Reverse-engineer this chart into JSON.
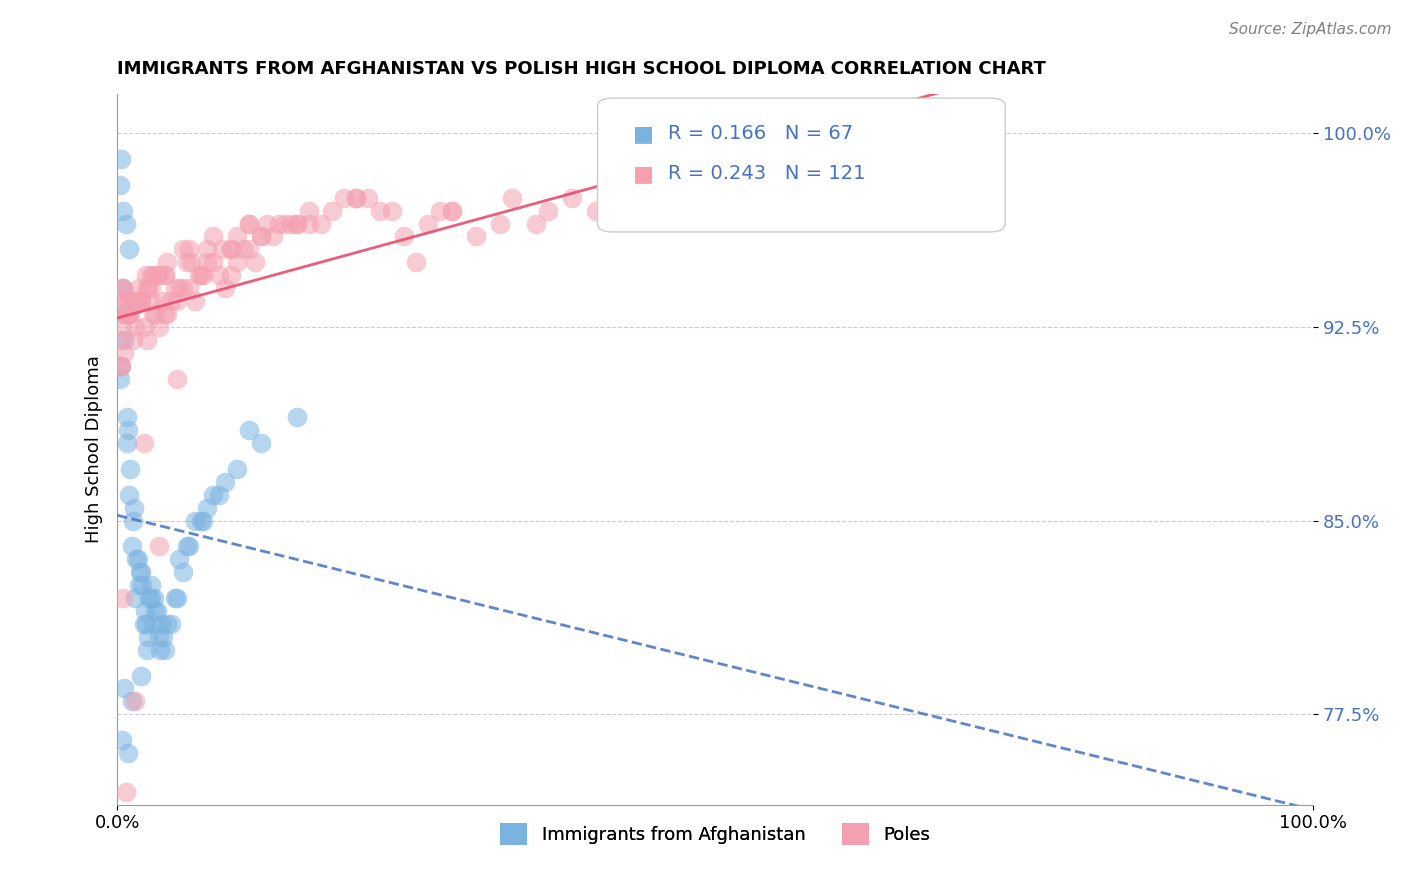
{
  "title": "IMMIGRANTS FROM AFGHANISTAN VS POLISH HIGH SCHOOL DIPLOMA CORRELATION CHART",
  "source": "Source: ZipAtlas.com",
  "xlabel": "",
  "ylabel": "High School Diploma",
  "xlim": [
    0.0,
    100.0
  ],
  "ylim": [
    74.0,
    101.5
  ],
  "yticks": [
    77.5,
    85.0,
    92.5,
    100.0
  ],
  "ytick_labels": [
    "77.5%",
    "85.0%",
    "92.5%",
    "100.0%"
  ],
  "xtick_labels": [
    "0.0%",
    "100.0%"
  ],
  "legend_r1": "R = 0.166",
  "legend_n1": "N = 67",
  "legend_r2": "R = 0.243",
  "legend_n2": "N = 121",
  "color_blue": "#7ab3e0",
  "color_pink": "#f4a0b0",
  "color_blue_line": "#4472c4",
  "color_pink_line": "#e84c6e",
  "color_blue_dashed": "#7ab3e0",
  "blue_dots_x": [
    0.2,
    0.3,
    0.5,
    0.8,
    1.0,
    1.2,
    1.5,
    1.8,
    2.0,
    2.2,
    2.5,
    2.8,
    3.0,
    3.5,
    4.0,
    5.0,
    6.0,
    7.0,
    8.0,
    10.0,
    12.0,
    15.0,
    0.4,
    0.6,
    0.9,
    1.1,
    1.3,
    1.6,
    2.1,
    2.3,
    2.6,
    3.2,
    3.8,
    4.5,
    5.5,
    7.5,
    9.0,
    11.0,
    0.2,
    0.5,
    0.7,
    1.0,
    1.4,
    1.9,
    2.4,
    3.1,
    3.7,
    4.2,
    6.5,
    8.5,
    0.3,
    0.8,
    1.7,
    2.7,
    3.3,
    4.8,
    0.6,
    1.2,
    2.0,
    3.6,
    5.2,
    7.2,
    0.4,
    0.9,
    2.8,
    5.8
  ],
  "blue_dots_y": [
    90.5,
    91.0,
    94.0,
    88.0,
    86.0,
    84.0,
    82.0,
    82.5,
    83.0,
    81.0,
    80.0,
    82.0,
    81.0,
    80.5,
    80.0,
    82.0,
    84.0,
    85.0,
    86.0,
    87.0,
    88.0,
    89.0,
    93.0,
    92.0,
    88.5,
    87.0,
    85.0,
    83.5,
    82.5,
    81.5,
    80.5,
    81.5,
    80.5,
    81.0,
    83.0,
    85.5,
    86.5,
    88.5,
    98.0,
    97.0,
    96.5,
    95.5,
    85.5,
    83.0,
    81.0,
    82.0,
    81.0,
    81.0,
    85.0,
    86.0,
    99.0,
    89.0,
    83.5,
    82.0,
    81.5,
    82.0,
    78.5,
    78.0,
    79.0,
    80.0,
    83.5,
    85.0,
    76.5,
    76.0,
    82.5,
    84.0
  ],
  "pink_dots_x": [
    0.5,
    1.0,
    1.5,
    2.0,
    2.5,
    3.0,
    3.5,
    4.0,
    5.0,
    6.0,
    7.0,
    8.0,
    9.0,
    10.0,
    11.0,
    12.0,
    15.0,
    18.0,
    20.0,
    25.0,
    30.0,
    35.0,
    40.0,
    45.0,
    50.0,
    55.0,
    60.0,
    0.8,
    1.3,
    2.2,
    3.2,
    4.5,
    5.5,
    7.5,
    9.5,
    13.0,
    16.0,
    22.0,
    28.0,
    38.0,
    0.3,
    0.7,
    1.2,
    1.8,
    2.8,
    4.2,
    6.5,
    8.5,
    11.5,
    14.0,
    19.0,
    24.0,
    32.0,
    42.0,
    52.0,
    0.4,
    0.9,
    1.6,
    2.5,
    3.8,
    5.2,
    7.2,
    10.5,
    17.0,
    23.0,
    33.0,
    0.6,
    1.1,
    2.0,
    3.3,
    4.8,
    6.8,
    9.5,
    13.5,
    0.2,
    1.4,
    2.6,
    4.0,
    6.2,
    8.8,
    12.0,
    0.5,
    2.2,
    5.0,
    0.7,
    1.5,
    3.5,
    26.0,
    36.0,
    48.0,
    58.0,
    0.3,
    0.8,
    2.8,
    4.2,
    0.9,
    1.7,
    3.0,
    5.5,
    8.0,
    11.0,
    16.0,
    21.0,
    28.0,
    0.6,
    2.4,
    6.0,
    10.0,
    15.0,
    27.0,
    1.0,
    3.5,
    7.5,
    12.5,
    1.2,
    2.8,
    5.8,
    9.5,
    14.5,
    20.0,
    0.4,
    4.0,
    11.0,
    46.0,
    47.0
  ],
  "pink_dots_y": [
    94.0,
    93.0,
    92.5,
    93.5,
    92.0,
    93.0,
    92.5,
    93.0,
    93.5,
    94.0,
    94.5,
    95.0,
    94.0,
    95.0,
    95.5,
    96.0,
    96.5,
    97.0,
    97.5,
    95.0,
    96.0,
    96.5,
    97.0,
    97.5,
    98.0,
    98.5,
    98.5,
    93.5,
    92.0,
    92.5,
    93.0,
    93.5,
    94.0,
    95.0,
    94.5,
    96.0,
    96.5,
    97.0,
    97.0,
    97.5,
    91.0,
    93.0,
    93.5,
    94.0,
    93.5,
    93.0,
    93.5,
    94.5,
    95.0,
    96.5,
    97.5,
    96.0,
    96.5,
    97.5,
    98.0,
    92.5,
    93.0,
    93.5,
    94.0,
    93.5,
    94.0,
    94.5,
    95.5,
    96.5,
    97.0,
    97.5,
    91.5,
    93.0,
    93.5,
    94.5,
    94.0,
    94.5,
    95.5,
    96.5,
    91.0,
    93.5,
    94.0,
    94.5,
    95.0,
    95.5,
    96.0,
    82.0,
    88.0,
    90.5,
    74.5,
    78.0,
    84.0,
    96.5,
    97.0,
    97.5,
    98.0,
    92.0,
    93.0,
    94.5,
    95.0,
    93.0,
    93.5,
    94.5,
    95.5,
    96.0,
    96.5,
    97.0,
    97.5,
    97.0,
    93.5,
    94.5,
    95.5,
    96.0,
    96.5,
    97.0,
    93.5,
    94.5,
    95.5,
    96.5,
    93.5,
    94.0,
    95.0,
    95.5,
    96.5,
    97.5,
    94.0,
    94.5,
    96.5,
    97.5,
    97.5
  ]
}
